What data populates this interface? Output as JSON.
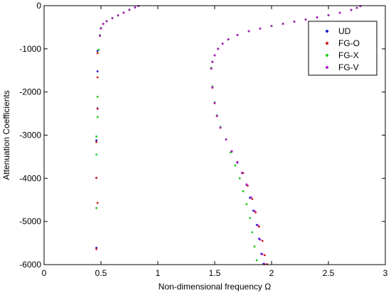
{
  "chart_data": {
    "type": "scatter",
    "title": "",
    "xlabel": "Non-dimensional frequency Ω",
    "ylabel": "Attenuation Coefficients",
    "xlim": [
      0,
      3
    ],
    "ylim": [
      -6000,
      0
    ],
    "xticks": [
      0,
      0.5,
      1,
      1.5,
      2,
      2.5,
      3
    ],
    "xtick_labels": [
      "0",
      "0.5",
      "1",
      "1.5",
      "2",
      "2.5",
      "3"
    ],
    "yticks": [
      0,
      -1000,
      -2000,
      -3000,
      -4000,
      -5000,
      -6000
    ],
    "ytick_labels": [
      "0",
      "-1000",
      "-2000",
      "-3000",
      "-4000",
      "-5000",
      "-6000"
    ],
    "grid": false,
    "legend_position": "top-right",
    "series": [
      {
        "name": "UD",
        "color": "#1a1acc",
        "points": [
          [
            0.47,
            -1050
          ],
          [
            0.47,
            -1520
          ],
          [
            0.47,
            -2380
          ],
          [
            0.46,
            -3120
          ],
          [
            0.46,
            -3990
          ],
          [
            0.46,
            -5610
          ],
          [
            0.49,
            -690
          ],
          [
            0.5,
            -520
          ],
          [
            0.52,
            -420
          ],
          [
            0.55,
            -360
          ],
          [
            0.6,
            -290
          ],
          [
            0.65,
            -225
          ],
          [
            0.7,
            -160
          ],
          [
            0.75,
            -95
          ],
          [
            0.8,
            -40
          ],
          [
            0.83,
            -8
          ],
          [
            1.47,
            -1450
          ],
          [
            1.48,
            -1300
          ],
          [
            1.5,
            -1150
          ],
          [
            1.53,
            -1000
          ],
          [
            1.57,
            -880
          ],
          [
            1.62,
            -780
          ],
          [
            1.7,
            -680
          ],
          [
            1.8,
            -590
          ],
          [
            1.9,
            -530
          ],
          [
            2.0,
            -470
          ],
          [
            2.1,
            -420
          ],
          [
            2.2,
            -370
          ],
          [
            2.3,
            -320
          ],
          [
            2.4,
            -270
          ],
          [
            2.5,
            -220
          ],
          [
            2.6,
            -165
          ],
          [
            2.7,
            -100
          ],
          [
            2.75,
            -50
          ],
          [
            2.78,
            -10
          ],
          [
            1.48,
            -1880
          ],
          [
            1.5,
            -2250
          ],
          [
            1.52,
            -2550
          ],
          [
            1.55,
            -2820
          ],
          [
            1.6,
            -3100
          ],
          [
            1.65,
            -3380
          ],
          [
            1.7,
            -3640
          ],
          [
            1.74,
            -3880
          ],
          [
            1.78,
            -4150
          ],
          [
            1.81,
            -4450
          ],
          [
            1.84,
            -4750
          ],
          [
            1.87,
            -5080
          ],
          [
            1.89,
            -5400
          ],
          [
            1.91,
            -5750
          ],
          [
            1.93,
            -5980
          ]
        ]
      },
      {
        "name": "FG-O",
        "color": "#cc1a1a",
        "points": [
          [
            0.47,
            -1100
          ],
          [
            0.47,
            -1660
          ],
          [
            0.47,
            -2390
          ],
          [
            0.46,
            -3160
          ],
          [
            0.46,
            -3990
          ],
          [
            0.47,
            -4570
          ],
          [
            0.46,
            -5640
          ],
          [
            0.49,
            -700
          ],
          [
            0.5,
            -530
          ],
          [
            0.52,
            -425
          ],
          [
            0.55,
            -362
          ],
          [
            0.6,
            -292
          ],
          [
            0.65,
            -227
          ],
          [
            0.7,
            -162
          ],
          [
            0.75,
            -97
          ],
          [
            0.8,
            -42
          ],
          [
            0.83,
            -9
          ],
          [
            1.47,
            -1460
          ],
          [
            1.48,
            -1305
          ],
          [
            1.5,
            -1152
          ],
          [
            1.53,
            -1002
          ],
          [
            1.57,
            -882
          ],
          [
            1.62,
            -782
          ],
          [
            1.7,
            -682
          ],
          [
            1.8,
            -592
          ],
          [
            1.9,
            -532
          ],
          [
            2.0,
            -472
          ],
          [
            2.1,
            -422
          ],
          [
            2.2,
            -372
          ],
          [
            2.3,
            -322
          ],
          [
            2.4,
            -272
          ],
          [
            2.5,
            -222
          ],
          [
            2.6,
            -167
          ],
          [
            2.7,
            -102
          ],
          [
            2.75,
            -52
          ],
          [
            2.78,
            -12
          ],
          [
            1.48,
            -1900
          ],
          [
            1.5,
            -2260
          ],
          [
            1.52,
            -2560
          ],
          [
            1.55,
            -2830
          ],
          [
            1.6,
            -3100
          ],
          [
            1.65,
            -3370
          ],
          [
            1.7,
            -3620
          ],
          [
            1.75,
            -3880
          ],
          [
            1.79,
            -4170
          ],
          [
            1.83,
            -4480
          ],
          [
            1.86,
            -4790
          ],
          [
            1.89,
            -5120
          ],
          [
            1.92,
            -5450
          ],
          [
            1.94,
            -5780
          ],
          [
            1.96,
            -5990
          ]
        ]
      },
      {
        "name": "FG-X",
        "color": "#1acc1a",
        "points": [
          [
            0.48,
            -1020
          ],
          [
            0.47,
            -2110
          ],
          [
            0.47,
            -2580
          ],
          [
            0.46,
            -3030
          ],
          [
            0.46,
            -3450
          ],
          [
            0.46,
            -4690
          ],
          [
            0.49,
            -680
          ],
          [
            0.5,
            -515
          ],
          [
            0.52,
            -418
          ],
          [
            0.55,
            -358
          ],
          [
            0.6,
            -288
          ],
          [
            0.65,
            -223
          ],
          [
            0.7,
            -158
          ],
          [
            0.75,
            -93
          ],
          [
            0.8,
            -38
          ],
          [
            0.83,
            -7
          ],
          [
            1.47,
            -1440
          ],
          [
            1.48,
            -1295
          ],
          [
            1.5,
            -1148
          ],
          [
            1.53,
            -998
          ],
          [
            1.57,
            -878
          ],
          [
            1.62,
            -778
          ],
          [
            1.7,
            -678
          ],
          [
            1.8,
            -588
          ],
          [
            1.9,
            -528
          ],
          [
            2.0,
            -468
          ],
          [
            2.1,
            -418
          ],
          [
            2.2,
            -368
          ],
          [
            2.3,
            -318
          ],
          [
            2.4,
            -268
          ],
          [
            2.5,
            -218
          ],
          [
            2.6,
            -163
          ],
          [
            2.7,
            -98
          ],
          [
            2.75,
            -48
          ],
          [
            2.78,
            -8
          ],
          [
            1.48,
            -1870
          ],
          [
            1.5,
            -2240
          ],
          [
            1.52,
            -2540
          ],
          [
            1.55,
            -2810
          ],
          [
            1.6,
            -3100
          ],
          [
            1.64,
            -3400
          ],
          [
            1.68,
            -3700
          ],
          [
            1.72,
            -4000
          ],
          [
            1.75,
            -4300
          ],
          [
            1.78,
            -4600
          ],
          [
            1.81,
            -4920
          ],
          [
            1.83,
            -5250
          ],
          [
            1.85,
            -5580
          ],
          [
            1.87,
            -5900
          ]
        ]
      },
      {
        "name": "FG-V",
        "color": "#b01acc",
        "points": [
          [
            0.49,
            -700
          ],
          [
            0.5,
            -525
          ],
          [
            0.52,
            -422
          ],
          [
            0.55,
            -360
          ],
          [
            0.6,
            -290
          ],
          [
            0.65,
            -225
          ],
          [
            0.7,
            -160
          ],
          [
            0.75,
            -95
          ],
          [
            0.8,
            -40
          ],
          [
            0.83,
            -8
          ],
          [
            1.47,
            -1455
          ],
          [
            1.48,
            -1302
          ],
          [
            1.5,
            -1150
          ],
          [
            1.53,
            -1000
          ],
          [
            1.57,
            -880
          ],
          [
            1.62,
            -780
          ],
          [
            1.7,
            -680
          ],
          [
            1.8,
            -590
          ],
          [
            1.9,
            -530
          ],
          [
            2.0,
            -470
          ],
          [
            2.1,
            -420
          ],
          [
            2.2,
            -370
          ],
          [
            2.3,
            -320
          ],
          [
            2.4,
            -270
          ],
          [
            2.5,
            -220
          ],
          [
            2.6,
            -165
          ],
          [
            2.7,
            -100
          ],
          [
            2.75,
            -50
          ],
          [
            2.78,
            -10
          ],
          [
            1.48,
            -1890
          ],
          [
            1.5,
            -2255
          ],
          [
            1.52,
            -2555
          ],
          [
            1.55,
            -2825
          ],
          [
            1.6,
            -3100
          ],
          [
            1.65,
            -3375
          ],
          [
            1.7,
            -3630
          ],
          [
            1.74,
            -3870
          ],
          [
            1.78,
            -4140
          ],
          [
            1.82,
            -4440
          ],
          [
            1.85,
            -4760
          ],
          [
            1.88,
            -5090
          ],
          [
            1.9,
            -5420
          ],
          [
            1.92,
            -5760
          ],
          [
            1.94,
            -5990
          ]
        ]
      }
    ]
  }
}
